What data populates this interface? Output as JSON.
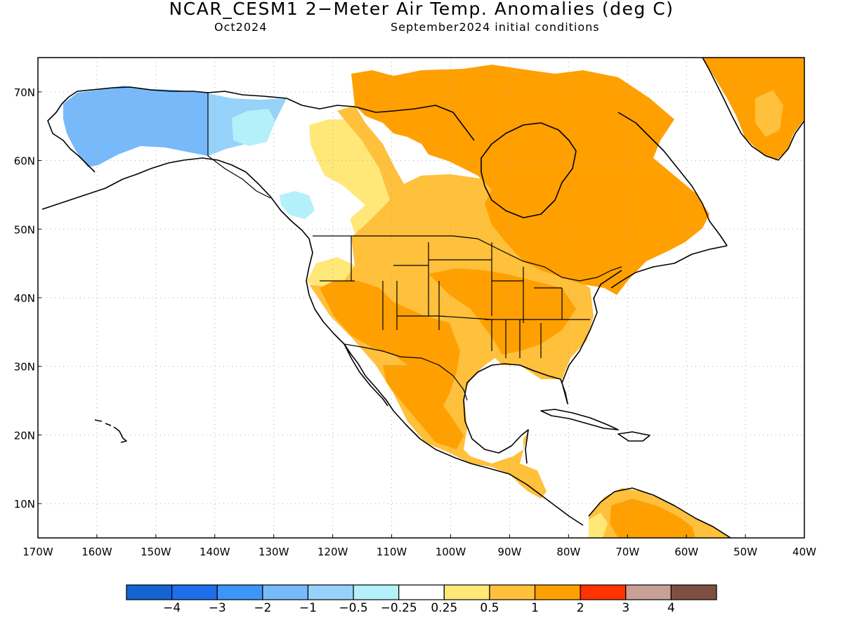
{
  "header": {
    "title": "NCAR_CESM1 2−Meter Air Temp. Anomalies (deg C)",
    "valid_month": "Oct2024",
    "init_conditions": "September2024 initial conditions"
  },
  "map": {
    "lat_range": [
      5,
      75
    ],
    "lon_range": [
      -170,
      -40
    ],
    "lat_ticks": [
      "10N",
      "20N",
      "30N",
      "40N",
      "50N",
      "60N",
      "70N"
    ],
    "lon_ticks": [
      "170W",
      "160W",
      "150W",
      "140W",
      "130W",
      "120W",
      "110W",
      "100W",
      "90W",
      "80W",
      "70W",
      "60W",
      "50W",
      "40W"
    ],
    "gridlines": "dotted",
    "anomaly_regions": [
      {
        "area": "Alaska",
        "category": "-2 to -1"
      },
      {
        "area": "Yukon / northern British Columbia",
        "category": "-1 to -0.5"
      },
      {
        "area": "Pacific Northwest coast",
        "category": "-0.5 to -0.25"
      },
      {
        "area": "Alberta / western Canada",
        "category": "0.25 to 0.5"
      },
      {
        "area": "Canadian Prairies and northern Plains",
        "category": "0.5 to 1"
      },
      {
        "area": "Eastern Canada and Canadian Arctic",
        "category": "1 to 2"
      },
      {
        "area": "Southwestern US and Great Basin",
        "category": "1 to 2"
      },
      {
        "area": "Central and eastern US",
        "category": "0.5 to 1"
      },
      {
        "area": "Mexico",
        "category": "1 to 2"
      },
      {
        "area": "Greenland",
        "category": "1 to 2"
      },
      {
        "area": "Northern South America",
        "category": "1 to 2"
      }
    ]
  },
  "colorbar": {
    "colors": [
      "#1464d2",
      "#1e6eeb",
      "#3c96f5",
      "#78b9fa",
      "#96d2fa",
      "#b4f0fa",
      "#ffffff",
      "#ffe878",
      "#ffc03c",
      "#ffa000",
      "#ff3200",
      "#c8a096",
      "#7d5043"
    ],
    "labels": [
      "−4",
      "−3",
      "−2",
      "−1",
      "−0.5",
      "−0.25",
      "0.25",
      "0.5",
      "1",
      "2",
      "3",
      "4"
    ]
  }
}
